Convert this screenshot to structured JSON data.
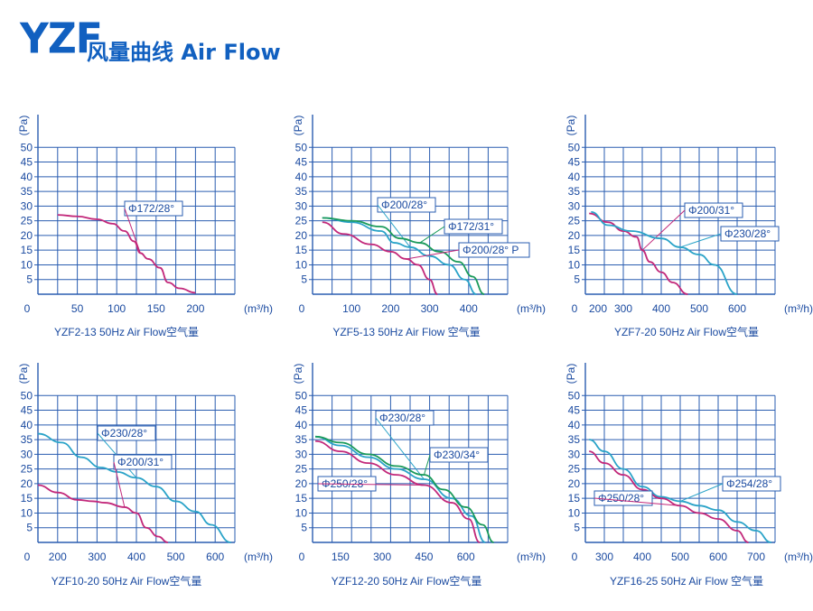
{
  "header": {
    "logo": "YZF",
    "title": "风量曲线 Air Flow"
  },
  "colors": {
    "grid": "#2a5db0",
    "pink": "#c2287a",
    "cyan": "#2aa3c8",
    "green": "#1a9a5a",
    "text": "#1a4aa0"
  },
  "chart_data": [
    {
      "type": "line",
      "title": "YZF2-13 50Hz  Air Flow空气量",
      "xlabel": "(m³/h)",
      "ylabel": "(Pa)",
      "xlim": [
        0,
        250
      ],
      "ylim": [
        0,
        55
      ],
      "x_ticks": [
        0,
        50,
        100,
        150,
        200
      ],
      "y_ticks": [
        5,
        10,
        15,
        20,
        25,
        30,
        35,
        40,
        45,
        50
      ],
      "series": [
        {
          "name": "Φ172/28°",
          "color": "pink",
          "x": [
            25,
            50,
            75,
            95,
            110,
            122,
            130,
            140,
            155,
            165,
            180,
            200
          ],
          "y": [
            27,
            26.5,
            25.5,
            24,
            21.5,
            18,
            14,
            12,
            9,
            4,
            2,
            0.5
          ]
        }
      ]
    },
    {
      "type": "line",
      "title": "YZF5-13 50Hz  Air Flow 空气量",
      "xlabel": "(m³/h)",
      "ylabel": "(Pa)",
      "xlim": [
        0,
        500
      ],
      "ylim": [
        0,
        55
      ],
      "x_ticks": [
        0,
        100,
        200,
        300,
        400
      ],
      "y_ticks": [
        5,
        10,
        15,
        20,
        25,
        30,
        35,
        40,
        45,
        50
      ],
      "series": [
        {
          "name": "Φ200/28°",
          "color": "cyan",
          "x": [
            25,
            100,
            175,
            210,
            250,
            300,
            350,
            390,
            420
          ],
          "y": [
            26,
            24.5,
            21.5,
            17.5,
            16,
            13,
            10,
            5,
            0
          ]
        },
        {
          "name": "Φ172/31°",
          "color": "green",
          "x": [
            25,
            100,
            175,
            225,
            275,
            325,
            375,
            410,
            440
          ],
          "y": [
            26,
            25,
            23,
            19,
            17.5,
            14.5,
            11,
            6,
            0
          ]
        },
        {
          "name": "Φ200/28° P",
          "color": "pink",
          "x": [
            25,
            80,
            150,
            200,
            240,
            270,
            300,
            320
          ],
          "y": [
            24.5,
            20.5,
            17,
            14.5,
            12,
            10,
            5,
            0
          ]
        }
      ]
    },
    {
      "type": "line",
      "title": "YZF7-20 50Hz  Air Flow空气量",
      "xlabel": "(m³/h)",
      "ylabel": "(Pa)",
      "xlim": [
        200,
        700
      ],
      "ylim": [
        0,
        55
      ],
      "x_ticks": [
        200,
        300,
        400,
        500,
        600
      ],
      "y_ticks": [
        5,
        10,
        15,
        20,
        25,
        30,
        35,
        40,
        45,
        50
      ],
      "series": [
        {
          "name": "Φ200/31°",
          "color": "pink",
          "x": [
            210,
            260,
            300,
            335,
            350,
            370,
            400,
            430,
            470
          ],
          "y": [
            27.5,
            24.5,
            21.5,
            19.5,
            15,
            11,
            7.5,
            4,
            0
          ]
        },
        {
          "name": "Φ230/28°",
          "color": "cyan",
          "x": [
            215,
            260,
            320,
            400,
            450,
            500,
            540,
            600
          ],
          "y": [
            28,
            23.5,
            21.5,
            19,
            16,
            13.5,
            10,
            0
          ]
        }
      ]
    },
    {
      "type": "line",
      "title": "YZF10-20 50Hz  Air Flow空气量",
      "xlabel": "(m³/h)",
      "ylabel": "(Pa)",
      "xlim": [
        150,
        650
      ],
      "ylim": [
        0,
        55
      ],
      "x_ticks": [
        200,
        300,
        400,
        500,
        600
      ],
      "y_ticks": [
        5,
        10,
        15,
        20,
        25,
        30,
        35,
        40,
        45,
        50
      ],
      "series": [
        {
          "name": "Φ230/28°",
          "color": "cyan",
          "x": [
            150,
            210,
            260,
            310,
            350,
            400,
            450,
            500,
            550,
            590,
            640
          ],
          "y": [
            37,
            34,
            29,
            25.5,
            24,
            22,
            19,
            14,
            10.5,
            6,
            0
          ]
        },
        {
          "name": "Φ200/31°",
          "color": "pink",
          "x": [
            150,
            200,
            250,
            290,
            320,
            370,
            400,
            425,
            455,
            480
          ],
          "y": [
            19.5,
            17,
            14.5,
            14,
            13.5,
            12,
            10,
            5,
            2,
            0
          ]
        }
      ]
    },
    {
      "type": "line",
      "title": "YZF12-20 50Hz  Air Flow空气量",
      "xlabel": "(m³/h)",
      "ylabel": "(Pa)",
      "xlim": [
        50,
        750
      ],
      "ylim": [
        0,
        55
      ],
      "x_ticks": [
        150,
        300,
        450,
        600
      ],
      "y_ticks": [
        5,
        10,
        15,
        20,
        25,
        30,
        35,
        40,
        45,
        50
      ],
      "series": [
        {
          "name": "Φ230/28°",
          "color": "cyan",
          "x": [
            60,
            150,
            250,
            350,
            450,
            550,
            620,
            670
          ],
          "y": [
            36,
            33,
            29,
            25,
            21.5,
            15,
            9,
            0
          ]
        },
        {
          "name": "Φ230/34°",
          "color": "green",
          "x": [
            60,
            150,
            250,
            350,
            450,
            520,
            600,
            660,
            700
          ],
          "y": [
            36,
            34,
            30,
            26,
            23,
            18,
            12,
            6,
            0
          ]
        },
        {
          "name": "Φ250/28°",
          "color": "pink",
          "x": [
            60,
            150,
            250,
            350,
            450,
            550,
            610,
            650
          ],
          "y": [
            34.5,
            31,
            27,
            23,
            19.5,
            13.5,
            8,
            0
          ]
        }
      ]
    },
    {
      "type": "line",
      "title": "YZF16-25 50Hz  Air Flow 空气量",
      "xlabel": "(m³/h)",
      "ylabel": "(Pa)",
      "xlim": [
        250,
        750
      ],
      "ylim": [
        0,
        55
      ],
      "x_ticks": [
        300,
        400,
        500,
        600,
        700
      ],
      "y_ticks": [
        5,
        10,
        15,
        20,
        25,
        30,
        35,
        40,
        45,
        50
      ],
      "series": [
        {
          "name": "Φ254/28°",
          "color": "cyan",
          "x": [
            260,
            300,
            350,
            400,
            450,
            500,
            550,
            600,
            650,
            700,
            740
          ],
          "y": [
            35,
            31,
            25,
            19,
            15.5,
            14,
            12.5,
            11,
            7,
            4,
            0
          ]
        },
        {
          "name": "Φ250/28°",
          "color": "pink",
          "x": [
            260,
            300,
            350,
            400,
            450,
            500,
            550,
            600,
            650,
            680
          ],
          "y": [
            31,
            27,
            23,
            18,
            15,
            12.5,
            10,
            8,
            4,
            0
          ]
        }
      ]
    }
  ]
}
